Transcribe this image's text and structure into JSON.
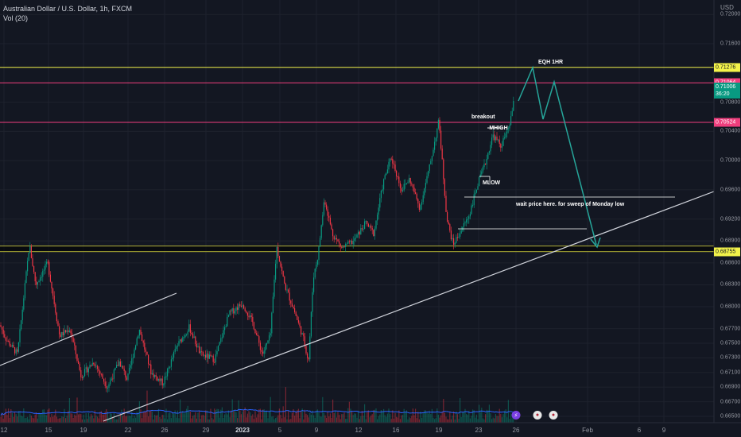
{
  "header": {
    "title": "Australian Dollar / U.S. Dollar, 1h, FXCM",
    "indicator": "Vol (20)",
    "currency": "USD"
  },
  "price_axis": {
    "labels": [
      "0.72000",
      "0.71600",
      "0.70800",
      "0.70400",
      "0.70000",
      "0.69600",
      "0.69200",
      "0.68900",
      "0.68600",
      "0.68300",
      "0.68000",
      "0.67700",
      "0.67500",
      "0.67300",
      "0.67100",
      "0.66900",
      "0.66700",
      "0.66500"
    ],
    "tags": [
      {
        "text": "0.71276",
        "bg": "#f2f24a",
        "fg": "#131722",
        "price": 0.71276
      },
      {
        "text": "0.71064",
        "bg": "#ef3e7d",
        "fg": "#ffffff",
        "price": 0.71064
      },
      {
        "text": "0.71006",
        "bg": "#089981",
        "fg": "#ffffff",
        "price": 0.71006,
        "countdown": "36:20"
      },
      {
        "text": "0.70524",
        "bg": "#ef3e7d",
        "fg": "#ffffff",
        "price": 0.70524
      },
      {
        "text": "0.68755",
        "bg": "#f2f24a",
        "fg": "#131722",
        "price": 0.68755
      }
    ]
  },
  "time_axis": {
    "labels": [
      "12",
      "15",
      "19",
      "22",
      "26",
      "29",
      "2023",
      "5",
      "9",
      "12",
      "16",
      "19",
      "23",
      "26",
      "Feb",
      "6",
      "9"
    ],
    "bold": "2023"
  },
  "annotations": {
    "eqh": "EQH 1HR",
    "breakout": "breakout",
    "mhigh": "-MHIGH",
    "mlow": "MLOW",
    "wait": "wait price here. for sweep of Monday low"
  },
  "colors": {
    "background": "#131722",
    "bull": "#089981",
    "bear": "#f23645",
    "yellow_line": "#f2f24a",
    "pink_line": "#ef3e7d",
    "forecast": "#26a69a",
    "trendline": "#d1d4dc",
    "volume_ma": "#2962ff"
  },
  "chart_data": {
    "type": "candlestick",
    "symbol": "AUDUSD",
    "timeframe": "1h",
    "price_range": [
      0.6645,
      0.7215
    ],
    "key_levels": [
      0.71276,
      0.71064,
      0.70524,
      0.68755,
      0.6883
    ],
    "current_price": 0.71006,
    "price_path": [
      [
        0,
        0.6775
      ],
      [
        8,
        0.6755
      ],
      [
        22,
        0.6735
      ],
      [
        37,
        0.6885
      ],
      [
        45,
        0.683
      ],
      [
        60,
        0.686
      ],
      [
        75,
        0.676
      ],
      [
        88,
        0.677
      ],
      [
        102,
        0.6705
      ],
      [
        118,
        0.6725
      ],
      [
        135,
        0.669
      ],
      [
        150,
        0.6725
      ],
      [
        160,
        0.67
      ],
      [
        175,
        0.677
      ],
      [
        190,
        0.671
      ],
      [
        205,
        0.6695
      ],
      [
        222,
        0.6745
      ],
      [
        238,
        0.6772
      ],
      [
        252,
        0.6735
      ],
      [
        270,
        0.6728
      ],
      [
        288,
        0.679
      ],
      [
        305,
        0.6805
      ],
      [
        318,
        0.6778
      ],
      [
        330,
        0.6735
      ],
      [
        340,
        0.676
      ],
      [
        348,
        0.6882
      ],
      [
        358,
        0.683
      ],
      [
        370,
        0.6795
      ],
      [
        382,
        0.6755
      ],
      [
        388,
        0.6725
      ],
      [
        394,
        0.684
      ],
      [
        400,
        0.687
      ],
      [
        408,
        0.6948
      ],
      [
        418,
        0.69
      ],
      [
        430,
        0.688
      ],
      [
        445,
        0.689
      ],
      [
        460,
        0.6915
      ],
      [
        470,
        0.69
      ],
      [
        482,
        0.697
      ],
      [
        492,
        0.7005
      ],
      [
        505,
        0.696
      ],
      [
        515,
        0.6975
      ],
      [
        528,
        0.6935
      ],
      [
        540,
        0.699
      ],
      [
        552,
        0.7055
      ],
      [
        562,
        0.692
      ],
      [
        570,
        0.6885
      ],
      [
        580,
        0.6905
      ],
      [
        590,
        0.6925
      ],
      [
        600,
        0.6965
      ],
      [
        610,
        0.6995
      ],
      [
        620,
        0.7035
      ],
      [
        630,
        0.702
      ],
      [
        640,
        0.7045
      ],
      [
        648,
        0.709
      ]
    ]
  }
}
